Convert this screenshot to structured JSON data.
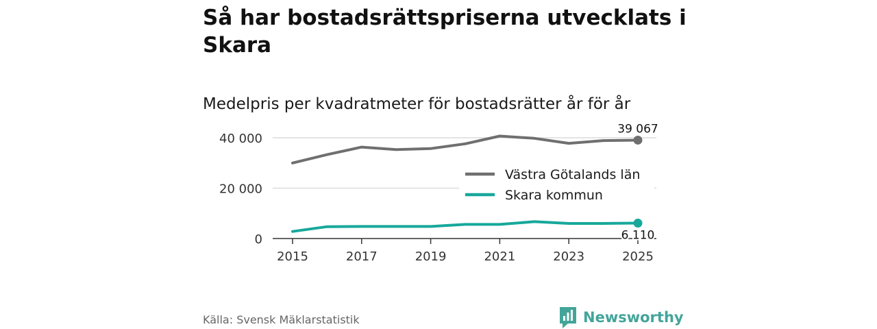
{
  "title": "Så har bostadsrättspriserna utvecklats i Skara",
  "subtitle": "Medelpris per kvadratmeter för bostadsrätter år för år",
  "source": "Källa: Svensk Mäklarstatistik",
  "brand": {
    "name": "Newsworthy",
    "color": "#43a59a"
  },
  "chart_data": {
    "type": "line",
    "x": [
      2015,
      2016,
      2017,
      2018,
      2019,
      2020,
      2021,
      2022,
      2023,
      2024,
      2025
    ],
    "x_tick_labels": [
      "2015",
      "2017",
      "2019",
      "2021",
      "2023",
      "2025"
    ],
    "x_tick_values": [
      2015,
      2017,
      2019,
      2021,
      2023,
      2025
    ],
    "y_tick_labels": [
      "0",
      "20 000",
      "40 000"
    ],
    "y_tick_values": [
      0,
      20000,
      40000
    ],
    "ylim": [
      0,
      43000
    ],
    "grid": true,
    "legend_position": "right",
    "series": [
      {
        "name": "Västra Götalands län",
        "color": "#6f6f6f",
        "values": [
          30000,
          33300,
          36300,
          35300,
          35700,
          37600,
          40700,
          39800,
          37800,
          38900,
          39067
        ],
        "end_label": "39 067"
      },
      {
        "name": "Skara kommun",
        "color": "#17a89b",
        "values": [
          2800,
          4700,
          4800,
          4800,
          4800,
          5600,
          5600,
          6700,
          6000,
          6000,
          6110
        ],
        "end_label": "6 110"
      }
    ]
  }
}
